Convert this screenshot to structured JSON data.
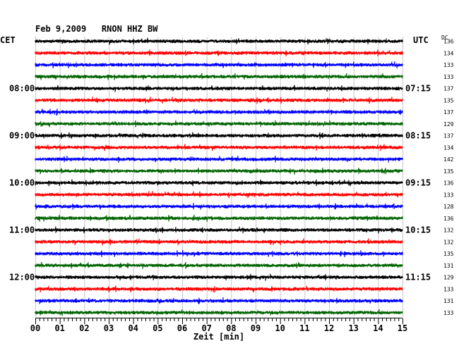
{
  "chart_data": {
    "type": "line",
    "title": "Feb 9,2009   RNON HHZ BW",
    "left_timezone": "CET",
    "right_timezone": "UTC",
    "right_column_label": "DC",
    "xlabel": "Zeit [min]",
    "x_ticks": [
      "00",
      "01",
      "02",
      "03",
      "04",
      "05",
      "06",
      "07",
      "08",
      "09",
      "10",
      "11",
      "12",
      "13",
      "14",
      "15"
    ],
    "xlim": [
      0,
      15
    ],
    "trace_colors": [
      "#000000",
      "#ff0000",
      "#0000ff",
      "#006400"
    ],
    "left_hour_labels": [
      {
        "trace": 4,
        "text": "08:00"
      },
      {
        "trace": 8,
        "text": "09:00"
      },
      {
        "trace": 12,
        "text": "10:00"
      },
      {
        "trace": 16,
        "text": "11:00"
      },
      {
        "trace": 20,
        "text": "12:00"
      }
    ],
    "right_hour_labels": [
      {
        "trace": 4,
        "text": "07:15"
      },
      {
        "trace": 8,
        "text": "08:15"
      },
      {
        "trace": 12,
        "text": "09:15"
      },
      {
        "trace": 16,
        "text": "10:15"
      },
      {
        "trace": 20,
        "text": "11:15"
      }
    ],
    "dc_values": [
      136,
      134,
      133,
      133,
      137,
      135,
      137,
      129,
      137,
      134,
      142,
      135,
      136,
      133,
      128,
      136,
      132,
      132,
      135,
      131,
      129,
      133,
      131,
      133
    ],
    "grid": true
  }
}
